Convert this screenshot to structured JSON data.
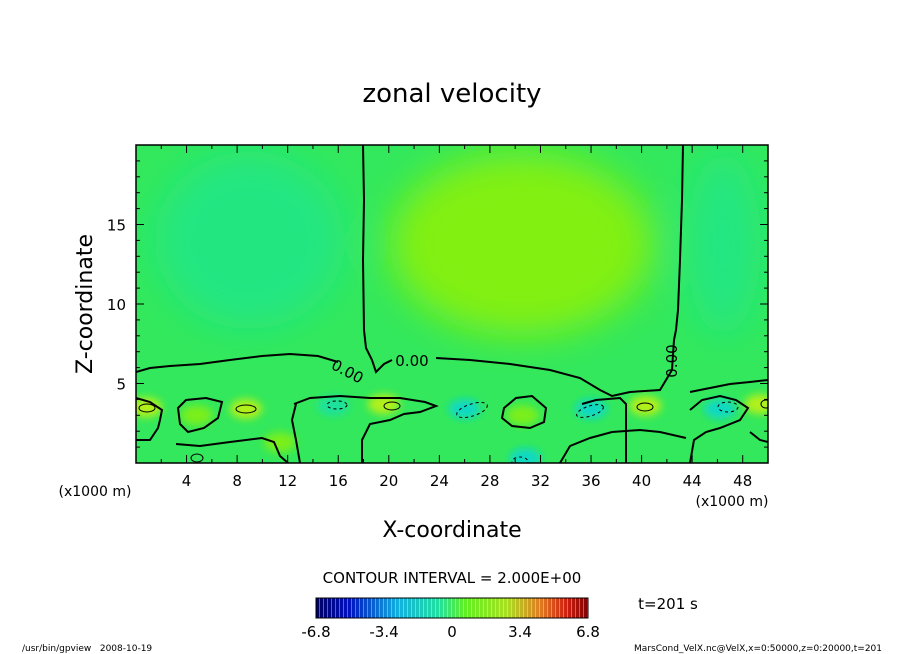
{
  "chart_data": {
    "type": "heatmap",
    "title": "zonal velocity",
    "xlabel": "X-coordinate",
    "ylabel": "Z-coordinate",
    "x_unit_left": "(x1000 m)",
    "x_unit_right": "(x1000 m)",
    "xlim": [
      0,
      50
    ],
    "ylim": [
      0,
      20
    ],
    "x_ticks": [
      "4",
      "8",
      "12",
      "16",
      "20",
      "24",
      "28",
      "32",
      "36",
      "40",
      "44",
      "48"
    ],
    "y_ticks": [
      "5",
      "10",
      "15"
    ],
    "contour_labels": [
      "0.00",
      "0.00",
      "0.00"
    ],
    "contour_interval": "CONTOUR INTERVAL = 2.000E+00",
    "time_label": "t=201 s",
    "colorbar": {
      "ticks": [
        "-6.8",
        "-3.4",
        "0",
        "3.4",
        "6.8"
      ],
      "range": [
        -6.8,
        6.8
      ]
    },
    "footer_left": "/usr/bin/gpview   2008-10-19",
    "footer_right": "MarsCond_VelX.nc@VelX,x=0:50000,z=0:20000,t=201",
    "colors": {
      "field_main": "#33e85c",
      "field_positive": "#86f00e",
      "field_negative": "#1ae6a0",
      "contour": "#000000"
    },
    "field": {
      "upper_left_zone": {
        "x_range": [
          0,
          18
        ],
        "z_range": [
          5.5,
          20
        ],
        "sign": "negative"
      },
      "upper_mid_zone": {
        "x_range": [
          18,
          43
        ],
        "z_range": [
          5,
          20
        ],
        "sign": "positive"
      },
      "upper_right_zone": {
        "x_range": [
          43,
          50
        ],
        "z_range": [
          5,
          20
        ],
        "sign": "negative"
      },
      "zero_contour_z": 5.5,
      "lower_cells": [
        {
          "x": 0.8,
          "z": 3.5,
          "value": 3.4
        },
        {
          "x": 4.8,
          "z": 3.0,
          "value": 2.0
        },
        {
          "x": 8.7,
          "z": 3.4,
          "value": 3.4
        },
        {
          "x": 11.4,
          "z": 1.3,
          "value": 2.0
        },
        {
          "x": 15.6,
          "z": 3.6,
          "value": -2.0
        },
        {
          "x": 19.6,
          "z": 3.7,
          "value": 3.4
        },
        {
          "x": 26.0,
          "z": 3.4,
          "value": -3.4
        },
        {
          "x": 30.6,
          "z": 3.0,
          "value": 2.0
        },
        {
          "x": 30.8,
          "z": 0.3,
          "value": -3.4
        },
        {
          "x": 36.0,
          "z": 3.4,
          "value": -3.4
        },
        {
          "x": 40.3,
          "z": 3.6,
          "value": 3.4
        },
        {
          "x": 46.2,
          "z": 3.4,
          "value": -3.4
        },
        {
          "x": 49.4,
          "z": 3.7,
          "value": 3.4
        }
      ]
    }
  }
}
